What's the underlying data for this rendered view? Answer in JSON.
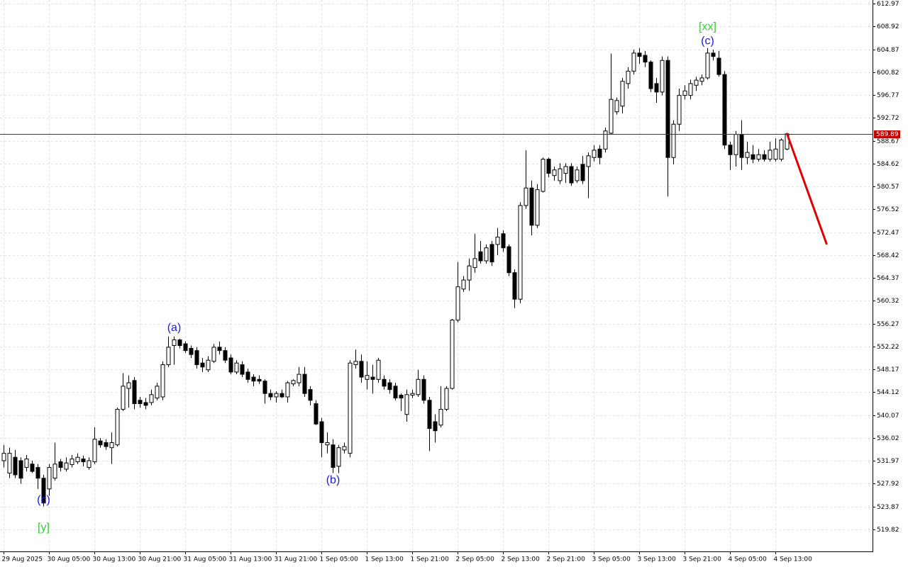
{
  "chart_data": {
    "type": "candlestick",
    "categories": [
      "29 Aug 2025",
      null,
      null,
      null,
      null,
      null,
      null,
      null,
      "30 Aug 05:00",
      null,
      null,
      null,
      null,
      null,
      null,
      null,
      "30 Aug 13:00",
      null,
      null,
      null,
      null,
      null,
      null,
      null,
      "30 Aug 21:00",
      null,
      null,
      null,
      null,
      null,
      null,
      null,
      "31 Aug 05:00",
      null,
      null,
      null,
      null,
      null,
      null,
      null,
      "31 Aug 13:00",
      null,
      null,
      null,
      null,
      null,
      null,
      null,
      "31 Aug 21:00",
      null,
      null,
      null,
      null,
      null,
      null,
      null,
      "1 Sep 05:00",
      null,
      null,
      null,
      null,
      null,
      null,
      null,
      "1 Sep 13:00",
      null,
      null,
      null,
      null,
      null,
      null,
      null,
      "1 Sep 21:00",
      null,
      null,
      null,
      null,
      null,
      null,
      null,
      "2 Sep 05:00",
      null,
      null,
      null,
      null,
      null,
      null,
      null,
      "2 Sep 13:00",
      null,
      null,
      null,
      null,
      null,
      null,
      null,
      "2 Sep 21:00",
      null,
      null,
      null,
      null,
      null,
      null,
      null,
      "3 Sep 05:00",
      null,
      null,
      null,
      null,
      null,
      null,
      null,
      "3 Sep 13:00",
      null,
      null,
      null,
      null,
      null,
      null,
      null,
      "3 Sep 21:00",
      null,
      null,
      null,
      null,
      null,
      null,
      null,
      "4 Sep 05:00",
      null,
      null,
      null,
      null,
      null,
      null,
      null,
      "4 Sep 13:00",
      null,
      null
    ],
    "open": [
      532.0,
      529.8,
      532.6,
      532.0,
      530.8,
      531.4,
      530.8,
      528.9,
      527.0,
      528.9,
      531.8,
      530.5,
      531.3,
      531.8,
      532.3,
      530.8,
      531.8,
      535.5,
      535.2,
      534.3,
      534.8,
      541.1,
      544.8,
      546.2,
      542.7,
      542.3,
      542.3,
      543.1,
      543.3,
      549.0,
      552.4,
      553.4,
      552.7,
      551.9,
      551.5,
      549.3,
      548.1,
      549.6,
      552.1,
      551.5,
      550.2,
      547.7,
      549.0,
      547.7,
      546.8,
      546.4,
      546.1,
      543.9,
      543.3,
      543.9,
      543.3,
      545.6,
      545.8,
      547.3,
      544.6,
      542.1,
      538.9,
      534.8,
      534.8,
      531.0,
      533.9,
      533.3,
      549.0,
      549.6,
      546.4,
      546.8,
      546.4,
      546.4,
      545.8,
      545.2,
      543.6,
      540.2,
      543.6,
      543.7,
      546.4,
      542.7,
      538.9,
      538.3,
      541.1,
      544.8,
      556.9,
      562.4,
      564.0,
      566.2,
      569.0,
      567.4,
      570.3,
      570.3,
      572.2,
      569.9,
      565.3,
      560.6,
      577.2,
      580.3,
      573.7,
      579.7,
      585.4,
      582.5,
      581.6,
      582.9,
      584.1,
      581.6,
      584.5,
      584.1,
      585.7,
      587.2,
      587.2,
      590.0,
      593.8,
      594.8,
      598.8,
      601.0,
      604.2,
      603.8,
      602.6,
      598.8,
      597.3,
      602.9,
      585.7,
      591.6,
      596.7,
      596.7,
      598.5,
      599.2,
      599.8,
      604.2,
      603.3,
      600.4,
      587.9,
      586.2,
      589.8,
      585.7,
      586.2,
      585.4,
      586.2,
      585.4,
      585.4,
      585.4,
      587.2
    ],
    "high": [
      534.8,
      534.3,
      533.9,
      532.6,
      533.0,
      532.0,
      531.4,
      529.5,
      531.4,
      535.2,
      532.3,
      532.6,
      533.0,
      533.3,
      532.9,
      532.6,
      537.9,
      536.0,
      535.8,
      537.0,
      541.4,
      547.5,
      547.1,
      546.8,
      543.3,
      543.1,
      544.6,
      545.8,
      549.6,
      554.0,
      554.0,
      553.6,
      553.1,
      552.4,
      552.1,
      550.2,
      550.5,
      552.7,
      553.1,
      552.1,
      550.8,
      549.8,
      549.6,
      548.3,
      547.3,
      547.1,
      546.4,
      544.6,
      544.3,
      544.6,
      546.1,
      546.4,
      548.6,
      548.6,
      545.2,
      542.7,
      539.6,
      537.0,
      535.8,
      534.8,
      535.2,
      549.8,
      551.7,
      550.8,
      549.6,
      549.0,
      550.2,
      547.1,
      546.4,
      545.8,
      543.9,
      544.6,
      544.6,
      548.1,
      547.1,
      543.3,
      540.2,
      545.2,
      545.2,
      557.1,
      567.2,
      564.7,
      567.8,
      572.2,
      570.9,
      570.3,
      570.9,
      573.2,
      572.8,
      570.3,
      565.9,
      577.8,
      587.0,
      581.6,
      581.0,
      585.7,
      585.7,
      584.1,
      584.7,
      584.7,
      584.7,
      584.1,
      586.0,
      586.6,
      587.9,
      587.9,
      591.0,
      604.1,
      596.3,
      599.8,
      601.7,
      604.8,
      605.1,
      604.6,
      602.9,
      599.8,
      603.6,
      603.6,
      592.3,
      597.9,
      598.5,
      599.5,
      600.0,
      600.4,
      605.1,
      604.8,
      604.6,
      601.0,
      588.5,
      590.4,
      592.3,
      588.5,
      587.9,
      587.2,
      587.0,
      588.5,
      589.1,
      589.1,
      590.1
    ],
    "low": [
      530.8,
      528.9,
      528.9,
      527.9,
      530.1,
      529.8,
      527.0,
      523.9,
      525.8,
      528.5,
      530.1,
      530.1,
      530.8,
      531.4,
      531.0,
      530.4,
      531.4,
      534.3,
      533.9,
      531.4,
      534.5,
      540.8,
      541.4,
      541.1,
      541.4,
      541.1,
      541.8,
      542.7,
      542.7,
      548.6,
      549.0,
      551.9,
      551.1,
      550.2,
      548.3,
      547.7,
      547.7,
      549.3,
      550.8,
      549.3,
      547.3,
      547.3,
      546.8,
      545.8,
      545.2,
      545.6,
      542.1,
      542.7,
      542.3,
      543.1,
      542.3,
      545.2,
      545.2,
      543.3,
      541.8,
      538.3,
      532.6,
      533.3,
      529.8,
      529.8,
      533.3,
      532.6,
      548.3,
      545.8,
      544.6,
      543.9,
      545.8,
      544.6,
      543.9,
      542.7,
      540.8,
      538.9,
      543.1,
      543.3,
      542.1,
      533.7,
      535.2,
      537.9,
      540.8,
      544.6,
      556.5,
      561.9,
      562.1,
      565.3,
      566.9,
      566.9,
      566.5,
      568.4,
      569.0,
      564.7,
      559.0,
      559.9,
      576.6,
      571.9,
      573.2,
      579.5,
      582.2,
      581.6,
      581.0,
      581.2,
      580.7,
      581.2,
      581.0,
      578.5,
      585.0,
      584.5,
      586.6,
      589.8,
      593.3,
      593.5,
      597.9,
      600.4,
      602.3,
      601.7,
      597.3,
      595.4,
      596.7,
      578.8,
      584.5,
      590.4,
      596.0,
      596.0,
      597.5,
      598.5,
      599.5,
      602.9,
      600.0,
      587.2,
      583.5,
      584.1,
      583.5,
      584.5,
      584.7,
      585.0,
      585.0,
      585.0,
      585.0,
      585.0,
      587.0
    ],
    "close": [
      533.3,
      533.3,
      529.5,
      528.9,
      532.3,
      530.1,
      528.9,
      524.5,
      530.8,
      531.4,
      530.8,
      531.6,
      532.3,
      532.6,
      531.8,
      532.0,
      535.8,
      534.8,
      534.5,
      535.2,
      541.1,
      545.2,
      545.8,
      542.1,
      542.1,
      541.8,
      543.7,
      545.2,
      549.0,
      552.1,
      553.4,
      552.4,
      551.5,
      550.8,
      549.0,
      548.6,
      549.8,
      552.1,
      551.5,
      549.8,
      547.7,
      549.3,
      547.3,
      546.4,
      546.1,
      546.1,
      543.9,
      543.3,
      543.9,
      543.3,
      545.8,
      546.2,
      547.3,
      543.9,
      542.7,
      538.5,
      535.2,
      535.2,
      530.8,
      534.3,
      534.5,
      549.3,
      549.6,
      546.8,
      547.1,
      546.4,
      549.8,
      545.2,
      544.6,
      543.1,
      543.1,
      543.7,
      543.9,
      546.4,
      542.7,
      537.7,
      537.3,
      541.1,
      544.8,
      556.9,
      562.8,
      564.0,
      566.5,
      567.8,
      567.4,
      569.7,
      567.2,
      571.6,
      569.7,
      565.3,
      560.6,
      577.2,
      580.3,
      573.7,
      580.0,
      585.4,
      582.9,
      583.5,
      583.7,
      584.1,
      581.2,
      583.5,
      581.6,
      586.0,
      587.0,
      585.7,
      590.4,
      596.0,
      595.8,
      599.2,
      601.0,
      604.2,
      603.6,
      602.6,
      597.9,
      597.3,
      602.9,
      585.7,
      591.6,
      596.7,
      597.5,
      598.8,
      599.4,
      599.8,
      604.2,
      603.6,
      600.4,
      587.9,
      586.2,
      589.8,
      585.7,
      586.6,
      585.4,
      586.2,
      585.4,
      587.0,
      587.2,
      588.8,
      589.9
    ],
    "up_color": "#ffffff",
    "down_color": "#000000",
    "ylim": [
      515.93,
      613.6
    ],
    "yticks": [
      612.97,
      608.92,
      604.87,
      600.82,
      596.77,
      592.72,
      588.67,
      584.62,
      580.57,
      576.52,
      572.47,
      568.42,
      564.37,
      560.32,
      556.27,
      552.22,
      548.17,
      544.12,
      540.07,
      536.02,
      531.97,
      527.92,
      523.87,
      519.82
    ],
    "grid": true,
    "current_price": 589.89,
    "current_price_color": "#c00000",
    "forecast": {
      "type": "line",
      "x": [
        138,
        145
      ],
      "values": [
        589.89,
        570.3
      ],
      "color": "#e00000"
    },
    "annotations": [
      {
        "text": "(c)",
        "x": 7,
        "y": 525.0,
        "color": "#1a1ad8"
      },
      {
        "text": "[y]",
        "x": 7,
        "y": 520.1,
        "color": "#3cc43c"
      },
      {
        "text": "(a)",
        "x": 30,
        "y": 555.5,
        "color": "#1a1ad8"
      },
      {
        "text": "(b)",
        "x": 58,
        "y": 528.5,
        "color": "#1a1ad8"
      },
      {
        "text": "(c)",
        "x": 124,
        "y": 606.3,
        "color": "#1a1ad8"
      },
      {
        "text": "[xx]",
        "x": 124,
        "y": 608.8,
        "color": "#3cc43c"
      }
    ]
  }
}
